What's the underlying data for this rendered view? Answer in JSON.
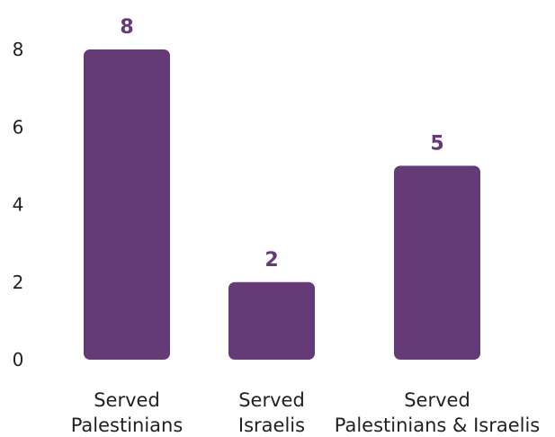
{
  "chart_data": {
    "type": "bar",
    "title": "",
    "xlabel": "",
    "ylabel": "",
    "categories": [
      [
        "Served",
        "Palestinians"
      ],
      [
        "Served",
        "Israelis"
      ],
      [
        "Served",
        "Palestinians & Israelis"
      ]
    ],
    "values": [
      8,
      2,
      5
    ],
    "value_labels": [
      "8",
      "2",
      "5"
    ],
    "ylim": [
      0,
      8
    ],
    "yticks": [
      0,
      2,
      4,
      6,
      8
    ],
    "ytick_labels": [
      "0",
      "2",
      "4",
      "6",
      "8"
    ],
    "grid": false,
    "legend": "none",
    "colors": {
      "bar": "#643a77",
      "value_label": "#643a77",
      "text": "#231f20"
    }
  }
}
